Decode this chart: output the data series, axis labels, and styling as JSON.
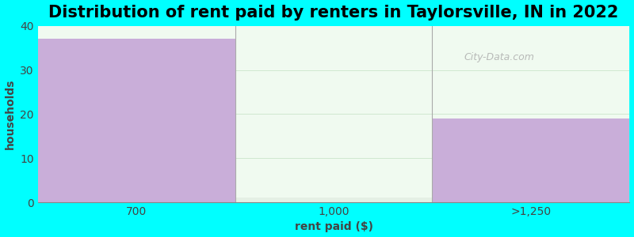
{
  "title": "Distribution of rent paid by renters in Taylorsville, IN in 2022",
  "xlabel": "rent paid ($)",
  "ylabel": "households",
  "categories": [
    "700",
    "1,000",
    ">1,250"
  ],
  "values": [
    37,
    1,
    19
  ],
  "bar_colors": [
    "#c9aed9",
    "#e5f0e5",
    "#c9aed9"
  ],
  "ylim": [
    0,
    40
  ],
  "yticks": [
    0,
    10,
    20,
    30,
    40
  ],
  "background_color": "#00ffff",
  "plot_bg_top": "#f0faf0",
  "plot_bg_bottom": "#e8f5e8",
  "title_fontsize": 15,
  "axis_label_fontsize": 10,
  "tick_fontsize": 10,
  "watermark_text": "City-Data.com",
  "bar_edges": [
    0.0,
    0.49,
    0.67,
    1.0
  ]
}
